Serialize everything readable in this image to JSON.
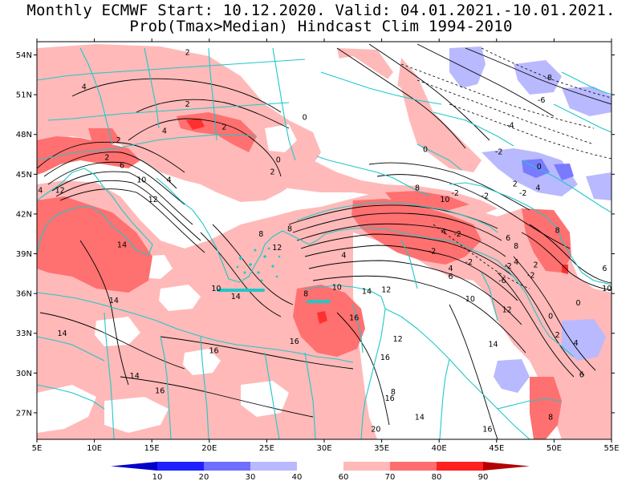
{
  "title": {
    "line1": "Monthly ECMWF Start: 10.12.2020. Valid: 04.01.2021.-10.01.2021.",
    "line2": "Prob(Tmax>Median) Hindcast Clim 1994-2010"
  },
  "map": {
    "lon_range": [
      5,
      55
    ],
    "lat_range": [
      25,
      55
    ],
    "lon_ticks": [
      "5E",
      "10E",
      "15E",
      "20E",
      "25E",
      "30E",
      "35E",
      "40E",
      "45E",
      "50E",
      "55E"
    ],
    "lat_ticks": [
      "27N",
      "30N",
      "33N",
      "36N",
      "39N",
      "42N",
      "45N",
      "48N",
      "51N",
      "54N"
    ],
    "coastline_color": "#20c8c8",
    "contour_labels": [
      {
        "text": "2",
        "lon": 18.1,
        "lat": 54.2
      },
      {
        "text": "4",
        "lon": 9.1,
        "lat": 51.6
      },
      {
        "text": "2",
        "lon": 18.1,
        "lat": 50.3
      },
      {
        "text": "0",
        "lon": 28.3,
        "lat": 49.3
      },
      {
        "text": "2",
        "lon": 21.3,
        "lat": 48.6
      },
      {
        "text": "4",
        "lon": 16.1,
        "lat": 48.3
      },
      {
        "text": "2",
        "lon": 12.1,
        "lat": 47.6
      },
      {
        "text": "2",
        "lon": 11.1,
        "lat": 46.3
      },
      {
        "text": "6",
        "lon": 12.4,
        "lat": 45.7
      },
      {
        "text": "0",
        "lon": 26.0,
        "lat": 46.1
      },
      {
        "text": "2",
        "lon": 25.5,
        "lat": 45.2
      },
      {
        "text": "4",
        "lon": 5.3,
        "lat": 43.8
      },
      {
        "text": "12",
        "lon": 7.0,
        "lat": 43.8
      },
      {
        "text": "10",
        "lon": 14.1,
        "lat": 44.6
      },
      {
        "text": "4",
        "lon": 16.5,
        "lat": 44.6
      },
      {
        "text": "12",
        "lon": 15.1,
        "lat": 43.1
      },
      {
        "text": "8",
        "lon": 24.5,
        "lat": 40.5
      },
      {
        "text": "8",
        "lon": 27.0,
        "lat": 40.9
      },
      {
        "text": "12",
        "lon": 25.9,
        "lat": 39.5
      },
      {
        "text": "14",
        "lon": 12.4,
        "lat": 39.7
      },
      {
        "text": "4",
        "lon": 31.7,
        "lat": 38.9
      },
      {
        "text": "-2",
        "lon": 39.4,
        "lat": 39.2
      },
      {
        "text": "-2",
        "lon": 42.6,
        "lat": 38.4
      },
      {
        "text": "-2",
        "lon": 46.0,
        "lat": 38.1
      },
      {
        "text": "-2",
        "lon": 48.0,
        "lat": 37.4
      },
      {
        "text": "-6",
        "lon": 45.5,
        "lat": 37.0
      },
      {
        "text": "4",
        "lon": 40.4,
        "lat": 40.7
      },
      {
        "text": "-2",
        "lon": 41.6,
        "lat": 40.5
      },
      {
        "text": "8",
        "lon": 46.7,
        "lat": 39.6
      },
      {
        "text": "6",
        "lon": 46.0,
        "lat": 40.2
      },
      {
        "text": "4",
        "lon": 46.7,
        "lat": 38.4
      },
      {
        "text": "2",
        "lon": 48.4,
        "lat": 38.2
      },
      {
        "text": "4",
        "lon": 41.0,
        "lat": 37.9
      },
      {
        "text": "6",
        "lon": 41.0,
        "lat": 37.3
      },
      {
        "text": "10",
        "lon": 40.5,
        "lat": 43.1
      },
      {
        "text": "-2",
        "lon": 41.4,
        "lat": 43.6
      },
      {
        "text": "-2",
        "lon": 44.0,
        "lat": 43.4
      },
      {
        "text": "-2",
        "lon": 47.3,
        "lat": 43.6
      },
      {
        "text": "4",
        "lon": 48.6,
        "lat": 44.0
      },
      {
        "text": "0",
        "lon": 48.7,
        "lat": 45.6
      },
      {
        "text": "2",
        "lon": 46.6,
        "lat": 44.3
      },
      {
        "text": "8",
        "lon": 38.1,
        "lat": 44.0
      },
      {
        "text": "-8",
        "lon": 49.5,
        "lat": 52.3
      },
      {
        "text": "-6",
        "lon": 48.9,
        "lat": 50.6
      },
      {
        "text": "-4",
        "lon": 46.2,
        "lat": 48.7
      },
      {
        "text": "-2",
        "lon": 45.2,
        "lat": 46.7
      },
      {
        "text": "0",
        "lon": 38.8,
        "lat": 46.9
      },
      {
        "text": "8",
        "lon": 50.3,
        "lat": 40.8
      },
      {
        "text": "6",
        "lon": 54.4,
        "lat": 37.9
      },
      {
        "text": "10",
        "lon": 54.6,
        "lat": 36.4
      },
      {
        "text": "0",
        "lon": 52.1,
        "lat": 35.3
      },
      {
        "text": "0",
        "lon": 49.7,
        "lat": 34.3
      },
      {
        "text": "2",
        "lon": 50.3,
        "lat": 32.9
      },
      {
        "text": "4",
        "lon": 51.9,
        "lat": 32.3
      },
      {
        "text": "6",
        "lon": 52.4,
        "lat": 29.9
      },
      {
        "text": "12",
        "lon": 45.9,
        "lat": 34.8
      },
      {
        "text": "14",
        "lon": 44.7,
        "lat": 32.2
      },
      {
        "text": "10",
        "lon": 42.7,
        "lat": 35.6
      },
      {
        "text": "8",
        "lon": 28.4,
        "lat": 36.0
      },
      {
        "text": "10",
        "lon": 31.1,
        "lat": 36.5
      },
      {
        "text": "14",
        "lon": 33.7,
        "lat": 36.2
      },
      {
        "text": "12",
        "lon": 35.4,
        "lat": 36.3
      },
      {
        "text": "14",
        "lon": 22.3,
        "lat": 35.8
      },
      {
        "text": "10",
        "lon": 20.6,
        "lat": 36.4
      },
      {
        "text": "16",
        "lon": 32.6,
        "lat": 34.2
      },
      {
        "text": "14",
        "lon": 11.7,
        "lat": 35.5
      },
      {
        "text": "14",
        "lon": 7.2,
        "lat": 33.0
      },
      {
        "text": "16",
        "lon": 27.4,
        "lat": 32.4
      },
      {
        "text": "16",
        "lon": 20.4,
        "lat": 31.7
      },
      {
        "text": "16",
        "lon": 35.3,
        "lat": 31.2
      },
      {
        "text": "12",
        "lon": 36.4,
        "lat": 32.6
      },
      {
        "text": "14",
        "lon": 13.5,
        "lat": 29.8
      },
      {
        "text": "16",
        "lon": 15.7,
        "lat": 28.7
      },
      {
        "text": "16",
        "lon": 35.7,
        "lat": 28.1
      },
      {
        "text": "8",
        "lon": 36.0,
        "lat": 28.6
      },
      {
        "text": "14",
        "lon": 38.3,
        "lat": 26.7
      },
      {
        "text": "16",
        "lon": 44.2,
        "lat": 25.8
      },
      {
        "text": "20",
        "lon": 34.5,
        "lat": 25.8
      },
      {
        "text": "8",
        "lon": 49.7,
        "lat": 26.7
      }
    ]
  },
  "colorbar": {
    "labels": [
      "10",
      "20",
      "30",
      "40",
      "60",
      "70",
      "80",
      "90"
    ],
    "colors": [
      "#0000c8",
      "#2020ff",
      "#6e6eff",
      "#b9b9ff",
      "#ffffff",
      "#ffb9b9",
      "#ff6e6e",
      "#ff2020",
      "#b40000"
    ]
  }
}
